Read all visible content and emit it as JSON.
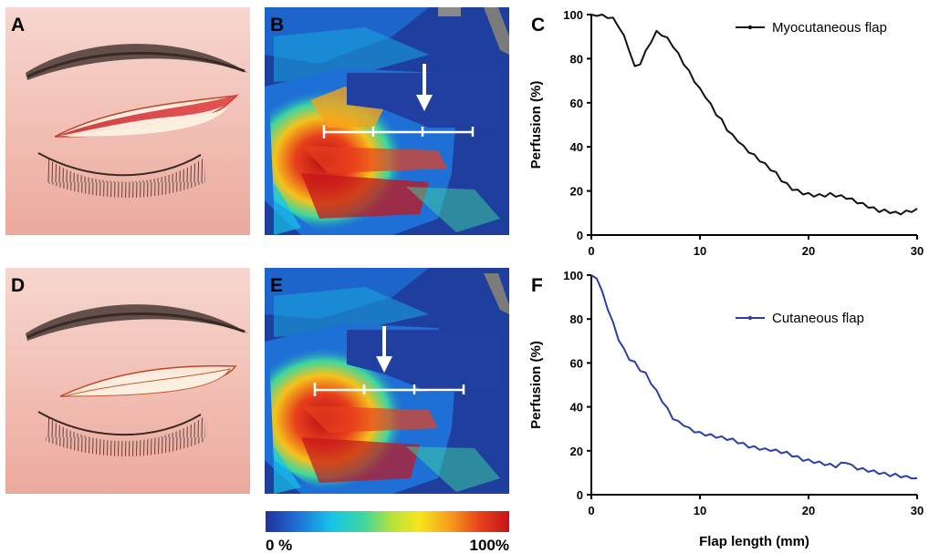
{
  "panels": {
    "a": "A",
    "b": "B",
    "c": "C",
    "d": "D",
    "e": "E",
    "f": "F"
  },
  "colorbar": {
    "min_label": "0 %",
    "max_label": "100%",
    "colors": [
      "#22309a",
      "#1e6fd6",
      "#17c4e8",
      "#3dd6a0",
      "#b7e23a",
      "#f5e61c",
      "#f6a21c",
      "#e8401c",
      "#c4141a"
    ]
  },
  "chart_data": [
    {
      "type": "line",
      "panel": "C",
      "xlabel": "",
      "ylabel": "Perfusion (%)",
      "xlim": [
        0,
        30
      ],
      "ylim": [
        0,
        100
      ],
      "xticks": [
        "0",
        "10",
        "20",
        "30"
      ],
      "yticks": [
        "0",
        "20",
        "40",
        "60",
        "80",
        "100"
      ],
      "legend_position": "top-right",
      "color": "#111111",
      "series": [
        {
          "name": "Myocutaneous flap",
          "x": [
            0,
            0.5,
            1,
            1.5,
            2,
            2.5,
            3,
            3.5,
            4,
            4.5,
            5,
            5.5,
            6,
            6.5,
            7,
            7.5,
            8,
            8.5,
            9,
            9.5,
            10,
            10.5,
            11,
            11.5,
            12,
            12.5,
            13,
            13.5,
            14,
            14.5,
            15,
            15.5,
            16,
            16.5,
            17,
            17.5,
            18,
            18.5,
            19,
            19.5,
            20,
            20.5,
            21,
            21.5,
            22,
            22.5,
            23,
            23.5,
            24,
            24.5,
            25,
            25.5,
            26,
            26.5,
            27,
            27.5,
            28,
            28.5,
            29,
            29.5,
            30
          ],
          "values": [
            100,
            100,
            100,
            99,
            98,
            95,
            90,
            84,
            76,
            78,
            83,
            88,
            92,
            91,
            89,
            86,
            82,
            78,
            74,
            70,
            66,
            63,
            59,
            55,
            52,
            48,
            45,
            43,
            40,
            38,
            36,
            34,
            32,
            30,
            28,
            25,
            23,
            21,
            20,
            19,
            18.5,
            18,
            18,
            18,
            18.5,
            18,
            17.5,
            17,
            16,
            15,
            14,
            13,
            12,
            11,
            11,
            10.5,
            10,
            10,
            10.5,
            11,
            12
          ]
        }
      ]
    },
    {
      "type": "line",
      "panel": "F",
      "xlabel": "Flap length (mm)",
      "ylabel": "Perfusion (%)",
      "xlim": [
        0,
        30
      ],
      "ylim": [
        0,
        100
      ],
      "xticks": [
        "0",
        "10",
        "20",
        "30"
      ],
      "yticks": [
        "0",
        "20",
        "40",
        "60",
        "80",
        "100"
      ],
      "legend_position": "top-right",
      "color": "#2a3fa8",
      "series": [
        {
          "name": "Cutaneous flap",
          "x": [
            0,
            0.5,
            1,
            1.5,
            2,
            2.5,
            3,
            3.5,
            4,
            4.5,
            5,
            5.5,
            6,
            6.5,
            7,
            7.5,
            8,
            8.5,
            9,
            9.5,
            10,
            10.5,
            11,
            11.5,
            12,
            12.5,
            13,
            13.5,
            14,
            14.5,
            15,
            15.5,
            16,
            16.5,
            17,
            17.5,
            18,
            18.5,
            19,
            19.5,
            20,
            20.5,
            21,
            21.5,
            22,
            22.5,
            23,
            23.5,
            24,
            24.5,
            25,
            25.5,
            26,
            26.5,
            27,
            27.5,
            28,
            28.5,
            29,
            29.5,
            30
          ],
          "values": [
            100,
            99,
            92,
            85,
            78,
            71,
            66,
            62,
            60,
            57,
            55,
            51,
            47,
            43,
            39,
            35,
            33,
            32,
            30,
            29,
            28,
            27.5,
            27,
            26.5,
            26,
            25.5,
            25,
            24,
            23,
            22,
            21.5,
            21,
            20.5,
            20.5,
            20,
            19.5,
            19,
            18,
            17,
            16,
            15.5,
            15,
            14.5,
            14,
            13.5,
            13,
            14,
            15,
            13,
            12,
            11.5,
            11,
            10.5,
            10,
            9.5,
            9,
            9,
            8.5,
            8,
            8,
            7.5
          ]
        }
      ]
    }
  ]
}
